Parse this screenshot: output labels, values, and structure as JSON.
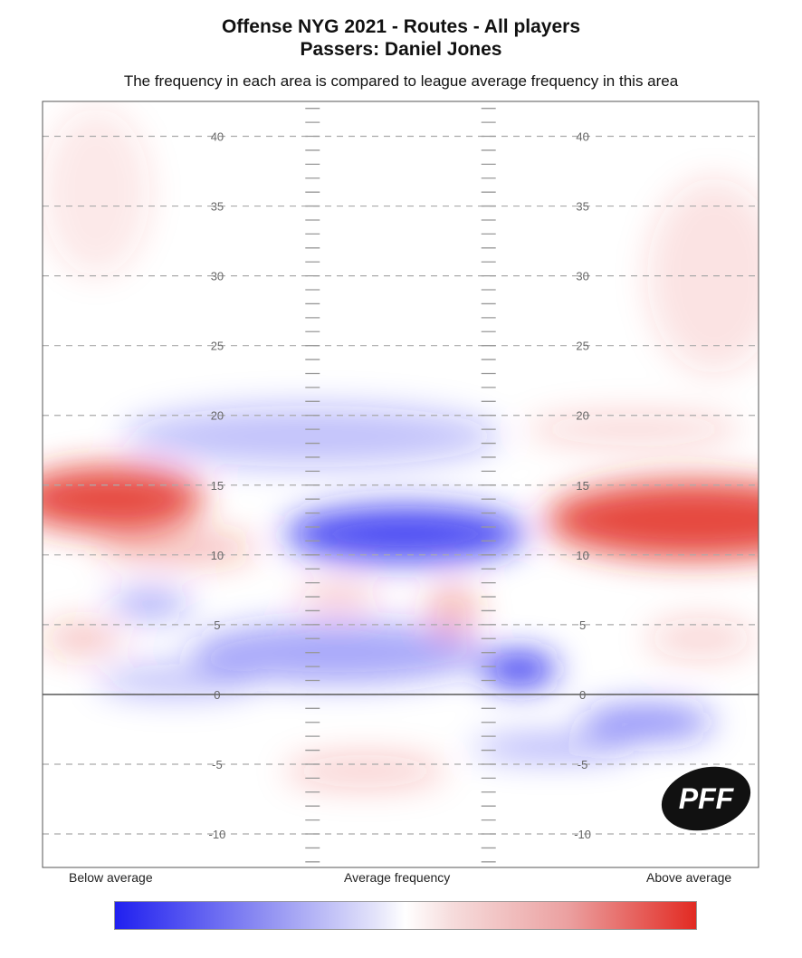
{
  "chart_data": {
    "type": "heatmap",
    "title": "Offense NYG 2021 - Routes - All players",
    "subtitle": "Passers: Daniel Jones",
    "description": "The frequency in each area is compared to league average frequency in this area",
    "xlabel": "",
    "ylabel": "",
    "ylim": [
      -12.4,
      42.5
    ],
    "xlim": [
      0,
      53.3
    ],
    "yticks": [
      40,
      35,
      30,
      25,
      20,
      15,
      10,
      5,
      0,
      -5,
      -10
    ],
    "line_of_scrimmage": 0,
    "hash_marks_x": [
      20.1,
      33.2
    ],
    "grid": true,
    "colorbar": {
      "low_label": "Below average",
      "mid_label": "Average frequency",
      "high_label": "Above average",
      "low_color": "#2020f0",
      "high_color": "#e22a22"
    },
    "blobs": [
      {
        "x": 5,
        "y": 14,
        "rx": 7,
        "ry": 2.3,
        "v": 0.95
      },
      {
        "x": 48.5,
        "y": 12.5,
        "rx": 11,
        "ry": 2.8,
        "v": 0.95
      },
      {
        "x": 10,
        "y": 10.5,
        "rx": 6,
        "ry": 1.2,
        "v": 0.35
      },
      {
        "x": 27,
        "y": 11.5,
        "rx": 9,
        "ry": 2.0,
        "v": -0.9
      },
      {
        "x": 35.5,
        "y": 1.8,
        "rx": 2.8,
        "ry": 1.2,
        "v": -1.0
      },
      {
        "x": 20,
        "y": 18.5,
        "rx": 14,
        "ry": 2.2,
        "v": -0.3
      },
      {
        "x": 8,
        "y": 6.5,
        "rx": 3,
        "ry": 1.0,
        "v": -0.45
      },
      {
        "x": 22,
        "y": 3,
        "rx": 11,
        "ry": 2.2,
        "v": -0.45
      },
      {
        "x": 10,
        "y": 1,
        "rx": 6,
        "ry": 1.2,
        "v": -0.3
      },
      {
        "x": 45,
        "y": -2,
        "rx": 5,
        "ry": 1.3,
        "v": -0.55
      },
      {
        "x": 38,
        "y": -3.8,
        "rx": 6,
        "ry": 0.8,
        "v": -0.4
      },
      {
        "x": 30.5,
        "y": 6,
        "rx": 2,
        "ry": 2,
        "v": 0.35
      },
      {
        "x": 22,
        "y": 7,
        "rx": 3,
        "ry": 1.2,
        "v": 0.25
      },
      {
        "x": 24,
        "y": -5.5,
        "rx": 6,
        "ry": 1.2,
        "v": 0.25
      },
      {
        "x": 3,
        "y": 4,
        "rx": 3,
        "ry": 1.2,
        "v": 0.3
      },
      {
        "x": 44,
        "y": 19,
        "rx": 8,
        "ry": 1.2,
        "v": 0.2
      },
      {
        "x": 49,
        "y": 4,
        "rx": 4,
        "ry": 1.5,
        "v": 0.2
      },
      {
        "x": 4,
        "y": 36,
        "rx": 4,
        "ry": 6,
        "v": 0.12
      },
      {
        "x": 50,
        "y": 30,
        "rx": 5,
        "ry": 7,
        "v": 0.15
      }
    ]
  }
}
